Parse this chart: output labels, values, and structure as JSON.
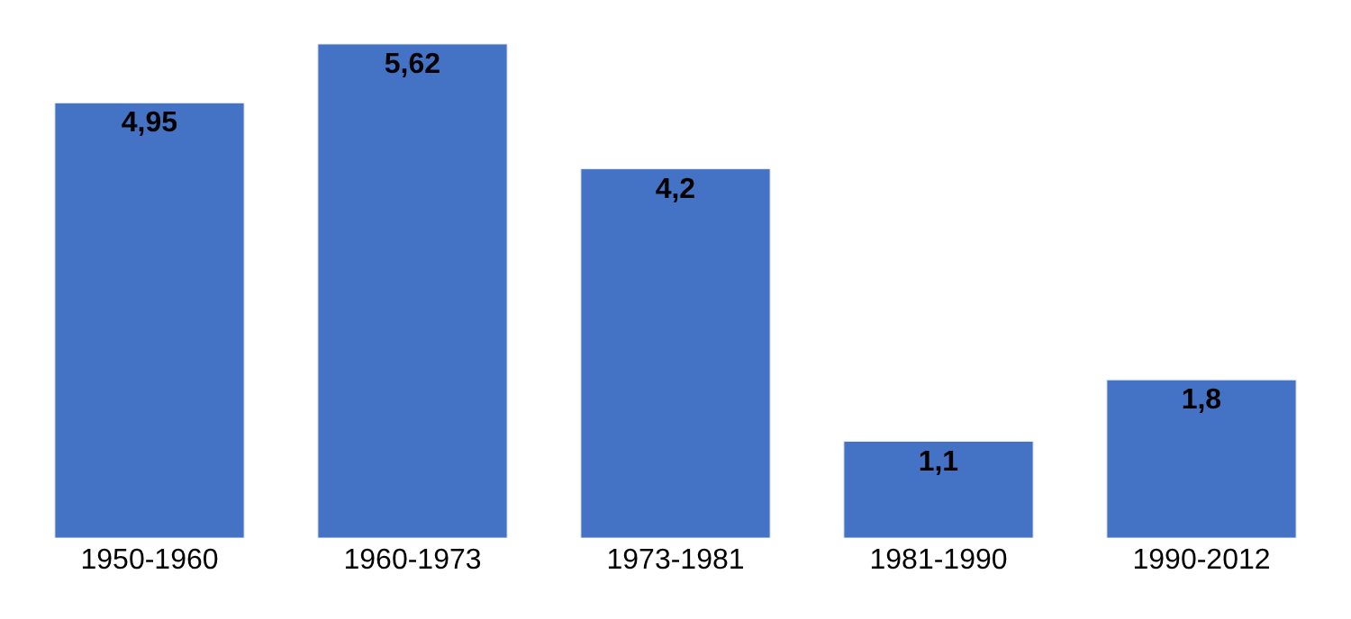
{
  "chart_data": {
    "type": "bar",
    "categories": [
      "1950-1960",
      "1960-1973",
      "1973-1981",
      "1981-1990",
      "1990-2012"
    ],
    "values": [
      4.95,
      5.62,
      4.2,
      1.1,
      1.8
    ],
    "value_labels": [
      "4,95",
      "5,62",
      "4,2",
      "1,1",
      "1,8"
    ],
    "color": "#4472c4"
  }
}
